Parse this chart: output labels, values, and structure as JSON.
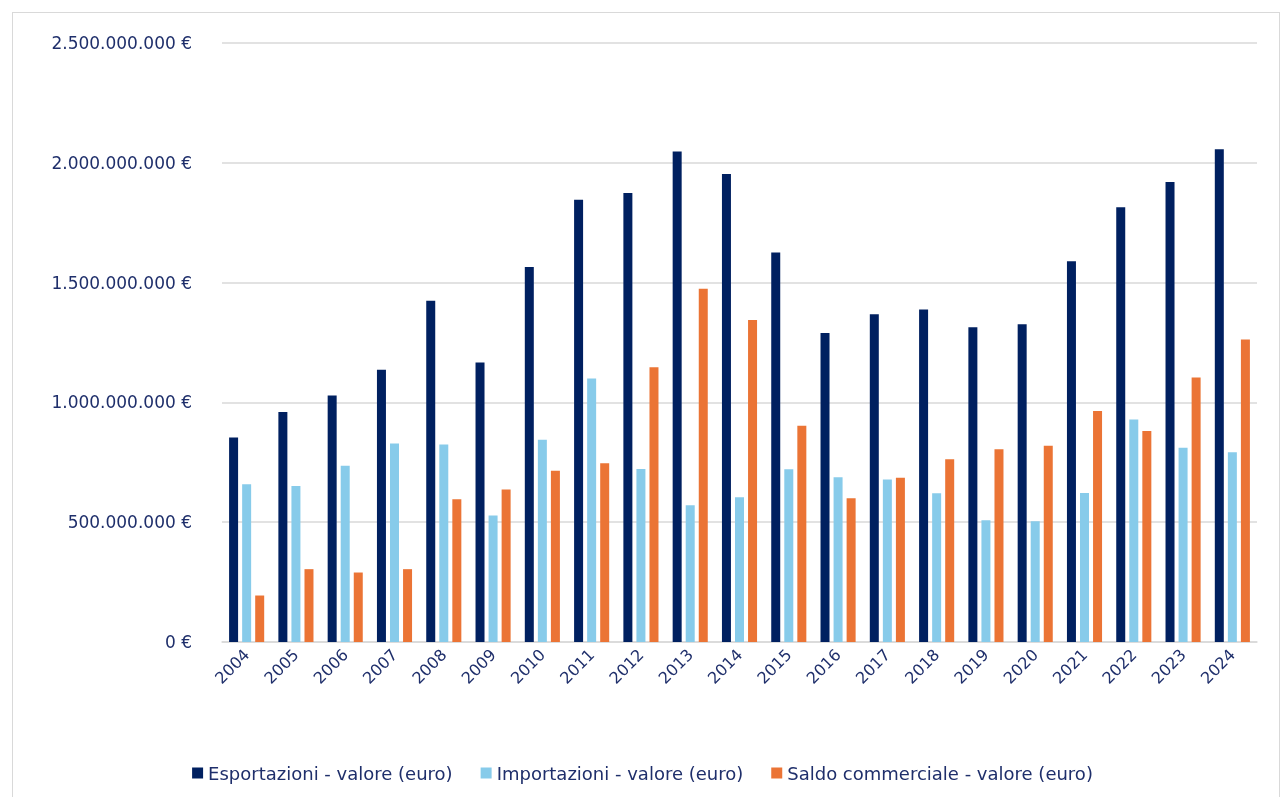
{
  "chart_data": {
    "type": "bar",
    "categories": [
      "2004",
      "2005",
      "2006",
      "2007",
      "2008",
      "2009",
      "2010",
      "2011",
      "2012",
      "2013",
      "2014",
      "2015",
      "2016",
      "2017",
      "2018",
      "2019",
      "2020",
      "2021",
      "2022",
      "2023",
      "2024"
    ],
    "series": [
      {
        "name": "Esportazioni - valore (euro)",
        "color": "#002060",
        "values": [
          854000000,
          960000000,
          1029000000,
          1136000000,
          1424000000,
          1167000000,
          1565000000,
          1846000000,
          1874000000,
          2047000000,
          1953000000,
          1626000000,
          1290000000,
          1368000000,
          1388000000,
          1314000000,
          1326000000,
          1589000000,
          1814000000,
          1920000000,
          2057000000
        ]
      },
      {
        "name": "Importazioni - valore (euro)",
        "color": "#87cbea",
        "values": [
          658000000,
          651000000,
          736000000,
          828000000,
          824000000,
          528000000,
          844000000,
          1100000000,
          722000000,
          571000000,
          604000000,
          721000000,
          688000000,
          678000000,
          621000000,
          508000000,
          504000000,
          622000000,
          929000000,
          811000000,
          792000000
        ]
      },
      {
        "name": "Saldo commerciale - valore (euro)",
        "color": "#eb7435",
        "values": [
          194000000,
          304000000,
          290000000,
          304000000,
          596000000,
          636000000,
          715000000,
          746000000,
          1147000000,
          1474000000,
          1344000000,
          903000000,
          600000000,
          686000000,
          763000000,
          804000000,
          819000000,
          964000000,
          881000000,
          1104000000,
          1263000000
        ]
      }
    ],
    "ylim": [
      0,
      2500000000
    ],
    "yticks": [
      {
        "value": 0,
        "label": "0 €"
      },
      {
        "value": 500000000,
        "label": "500.000.000 €"
      },
      {
        "value": 1000000000,
        "label": "1.000.000.000 €"
      },
      {
        "value": 1500000000,
        "label": "1.500.000.000 €"
      },
      {
        "value": 2000000000,
        "label": "2.000.000.000 €"
      },
      {
        "value": 2500000000,
        "label": "2.500.000.000 €"
      }
    ],
    "grid": "y",
    "legend": "bottom"
  }
}
